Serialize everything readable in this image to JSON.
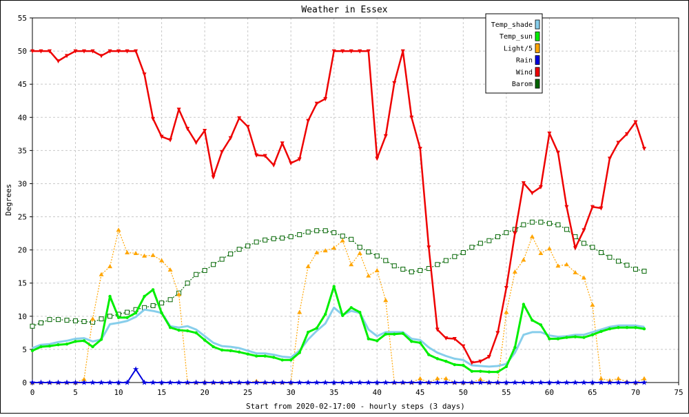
{
  "chart_data": {
    "type": "line",
    "title": "Weather in Essex",
    "xlabel": "Start from 2020-02-17:00 - hourly steps (3 days)",
    "ylabel": "Degrees",
    "xlim": [
      0,
      75
    ],
    "ylim": [
      0,
      55
    ],
    "xticks": [
      0,
      5,
      10,
      15,
      20,
      25,
      30,
      35,
      40,
      45,
      50,
      55,
      60,
      65,
      70,
      75
    ],
    "yticks": [
      0,
      5,
      10,
      15,
      20,
      25,
      30,
      35,
      40,
      45,
      50,
      55
    ],
    "grid": true,
    "legend_position": "top-right",
    "series": [
      {
        "name": "Temp_shade",
        "color": "#87ceeb",
        "values": [
          5.2,
          5.7,
          5.8,
          6.1,
          6.3,
          6.6,
          6.7,
          6.2,
          6.5,
          8.8,
          9.0,
          9.3,
          9.9,
          11.0,
          10.8,
          10.5,
          8.5,
          8.3,
          8.5,
          8.0,
          7.0,
          6.0,
          5.5,
          5.4,
          5.2,
          4.8,
          4.4,
          4.4,
          4.2,
          3.9,
          3.8,
          4.8,
          6.5,
          7.8,
          8.9,
          11.3,
          10.2,
          10.8,
          10.5,
          8.0,
          7.0,
          7.6,
          7.6,
          7.6,
          6.6,
          6.4,
          5.3,
          4.5,
          4.0,
          3.6,
          3.4,
          2.6,
          2.5,
          2.4,
          2.5,
          2.8,
          4.5,
          7.2,
          7.6,
          7.6,
          7.1,
          6.9,
          7.0,
          7.2,
          7.2,
          7.6,
          8.0,
          8.4,
          8.6,
          8.6,
          8.6,
          8.4
        ]
      },
      {
        "name": "Temp_sun",
        "color": "#00ee00",
        "values": [
          4.8,
          5.4,
          5.5,
          5.7,
          5.8,
          6.2,
          6.3,
          5.4,
          6.5,
          13.0,
          9.8,
          9.8,
          10.5,
          13.0,
          14.0,
          10.5,
          8.3,
          7.9,
          7.8,
          7.5,
          6.4,
          5.4,
          4.9,
          4.8,
          4.6,
          4.3,
          4.0,
          4.0,
          3.8,
          3.4,
          3.4,
          4.5,
          7.6,
          8.2,
          10.3,
          14.5,
          10.1,
          11.3,
          10.6,
          6.6,
          6.3,
          7.3,
          7.3,
          7.4,
          6.2,
          6.0,
          4.2,
          3.6,
          3.2,
          2.7,
          2.6,
          1.7,
          1.7,
          1.6,
          1.6,
          2.4,
          5.3,
          11.8,
          9.4,
          8.7,
          6.6,
          6.6,
          6.8,
          6.9,
          6.8,
          7.2,
          7.7,
          8.1,
          8.3,
          8.3,
          8.3,
          8.1
        ]
      },
      {
        "name": "Light/5",
        "color": "#ffa500",
        "values": [
          0.0,
          0.0,
          0.0,
          0.0,
          0.0,
          0.0,
          0.5,
          9.6,
          16.3,
          17.5,
          23.0,
          19.6,
          19.5,
          19.1,
          19.2,
          18.4,
          17.0,
          13.3,
          0.0,
          0.0,
          0.1,
          0.0,
          0.0,
          0.0,
          0.0,
          0.0,
          0.2,
          0.0,
          0.0,
          0.0,
          0.0,
          10.6,
          17.5,
          19.6,
          19.9,
          20.3,
          21.4,
          17.8,
          19.5,
          16.1,
          16.9,
          12.4,
          0.0,
          0.0,
          0.0,
          0.6,
          0.0,
          0.6,
          0.6,
          0.0,
          0.0,
          0.0,
          0.5,
          0.0,
          0.0,
          10.6,
          16.7,
          18.5,
          22.0,
          19.5,
          20.2,
          17.6,
          17.8,
          16.6,
          15.8,
          11.7,
          0.6,
          0.3,
          0.6,
          0.1,
          0.0,
          0.6
        ]
      },
      {
        "name": "Rain",
        "color": "#0000dd",
        "values": [
          0,
          0,
          0,
          0,
          0,
          0,
          0,
          0,
          0,
          0,
          0,
          0,
          2.0,
          0,
          0,
          0,
          0,
          0,
          0,
          0,
          0,
          0,
          0,
          0,
          0,
          0,
          0,
          0,
          0,
          0,
          0,
          0,
          0,
          0,
          0,
          0,
          0,
          0,
          0,
          0,
          0,
          0,
          0,
          0,
          0,
          0,
          0,
          0,
          0,
          0,
          0,
          0,
          0,
          0,
          0,
          0,
          0,
          0,
          0,
          0,
          0,
          0,
          0,
          0,
          0,
          0,
          0,
          0,
          0,
          0,
          0,
          0
        ]
      },
      {
        "name": "Wind",
        "color": "#ee0000",
        "values": [
          50.0,
          50.0,
          50.0,
          48.5,
          49.3,
          50.0,
          50.0,
          50.0,
          49.3,
          50.0,
          50.0,
          50.0,
          50.0,
          46.5,
          39.8,
          37.1,
          36.6,
          41.2,
          38.3,
          36.2,
          38.0,
          31.0,
          34.8,
          36.9,
          39.9,
          38.6,
          34.3,
          34.2,
          32.8,
          36.1,
          33.1,
          33.7,
          39.5,
          42.1,
          42.8,
          50.0,
          50.0,
          50.0,
          50.0,
          50.0,
          33.8,
          37.2,
          45.2,
          50.0,
          40.0,
          35.3,
          20.4,
          8.0,
          6.7,
          6.6,
          5.5,
          3.0,
          3.2,
          3.9,
          7.5,
          14.3,
          22.5,
          30.1,
          28.6,
          29.5,
          37.6,
          34.7,
          26.5,
          20.3,
          23.0,
          26.5,
          26.3,
          33.8,
          36.2,
          37.5,
          39.3,
          35.3
        ]
      },
      {
        "name": "Barom",
        "color": "#006400",
        "values": [
          8.5,
          9.0,
          9.5,
          9.5,
          9.4,
          9.3,
          9.2,
          9.1,
          9.6,
          10.0,
          10.3,
          10.6,
          11.0,
          11.3,
          11.6,
          12.0,
          12.5,
          13.5,
          15.0,
          16.3,
          16.9,
          17.8,
          18.6,
          19.4,
          20.1,
          20.6,
          21.2,
          21.5,
          21.7,
          21.8,
          22.0,
          22.3,
          22.7,
          22.9,
          22.9,
          22.6,
          22.1,
          21.6,
          20.4,
          19.7,
          19.1,
          18.4,
          17.6,
          17.1,
          16.7,
          16.9,
          17.2,
          17.8,
          18.4,
          19.0,
          19.6,
          20.4,
          21.0,
          21.4,
          22.0,
          22.6,
          23.1,
          23.8,
          24.2,
          24.2,
          24.0,
          23.8,
          23.1,
          22.0,
          21.0,
          20.4,
          19.6,
          18.9,
          18.3,
          17.7,
          17.1,
          16.8
        ]
      }
    ]
  }
}
